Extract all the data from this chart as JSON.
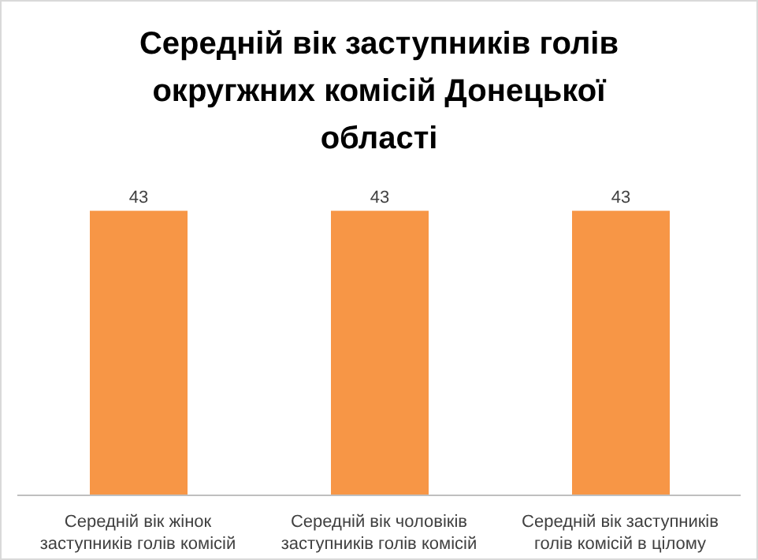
{
  "chart_data": {
    "type": "bar",
    "title": "Середній вік заступників голів округжних комісій Донецької області",
    "categories": [
      "Середній вік жінок заступників голів комісій",
      "Середній вік чоловіків заступників голів комісій",
      "Середній вік заступників голів комісій в цілому"
    ],
    "values": [
      43,
      43,
      43
    ],
    "color": "#f79646",
    "data_labels": true,
    "grid": false,
    "legend": false
  }
}
